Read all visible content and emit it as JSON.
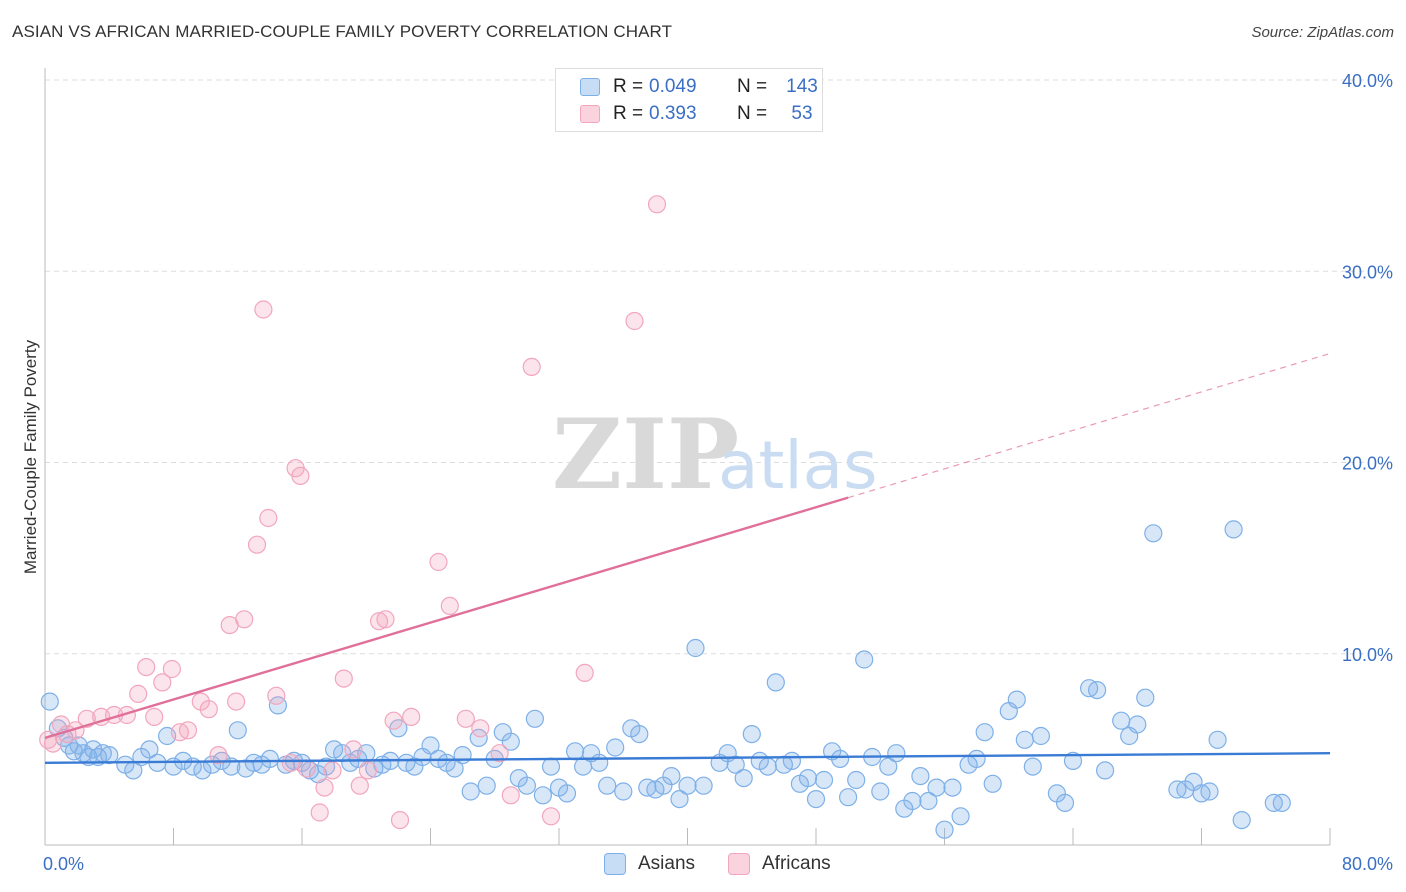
{
  "title": "ASIAN VS AFRICAN MARRIED-COUPLE FAMILY POVERTY CORRELATION CHART",
  "source": "Source: ZipAtlas.com",
  "watermark": {
    "zip": "ZIP",
    "atlas": "atlas"
  },
  "stats": [
    {
      "r_label": "R =",
      "r_value": "0.049",
      "n_label": "N =",
      "n_value": "143",
      "color": "#7eb0e8"
    },
    {
      "r_label": "R =",
      "r_value": "0.393",
      "n_label": "N =",
      "n_value": "53",
      "color": "#f2a6bd"
    }
  ],
  "legend": [
    {
      "label": "Asians",
      "color": "#7eb0e8"
    },
    {
      "label": "Africans",
      "color": "#f2a6bd"
    }
  ],
  "chart_data": {
    "type": "scatter",
    "title": "ASIAN VS AFRICAN MARRIED-COUPLE FAMILY POVERTY CORRELATION CHART",
    "xlabel": "",
    "ylabel": "Married-Couple Family Poverty",
    "xlim": [
      0,
      80
    ],
    "ylim": [
      0,
      41.5
    ],
    "x_tick_labels": [
      {
        "value": 0,
        "label": "0.0%"
      },
      {
        "value": 80,
        "label": "80.0%"
      }
    ],
    "y_tick_labels": [
      {
        "value": 10,
        "label": "10.0%"
      },
      {
        "value": 20,
        "label": "20.0%"
      },
      {
        "value": 30,
        "label": "30.0%"
      },
      {
        "value": 40,
        "label": "40.0%"
      }
    ],
    "x_minor_ticks": [
      8,
      16,
      24,
      32,
      40,
      48,
      56,
      64,
      72
    ],
    "gridlines": "horizontal-dashed",
    "series": [
      {
        "name": "Asians",
        "color": "#7eb0e8",
        "trend": {
          "x0": 0,
          "y0": 4.3,
          "x1": 80,
          "y1": 4.8,
          "solid_to": 80
        },
        "points": [
          [
            0.3,
            7.5
          ],
          [
            0.8,
            6.1
          ],
          [
            1.2,
            5.6
          ],
          [
            1.5,
            5.2
          ],
          [
            1.8,
            4.9
          ],
          [
            2.1,
            5.2
          ],
          [
            2.4,
            4.8
          ],
          [
            2.7,
            4.6
          ],
          [
            3.0,
            5.0
          ],
          [
            3.3,
            4.6
          ],
          [
            3.6,
            4.8
          ],
          [
            4.0,
            4.7
          ],
          [
            5.0,
            4.2
          ],
          [
            5.5,
            3.9
          ],
          [
            6.0,
            4.6
          ],
          [
            6.5,
            5.0
          ],
          [
            7.0,
            4.3
          ],
          [
            7.6,
            5.7
          ],
          [
            8.0,
            4.1
          ],
          [
            8.6,
            4.4
          ],
          [
            9.2,
            4.1
          ],
          [
            9.8,
            3.9
          ],
          [
            10.4,
            4.2
          ],
          [
            11.0,
            4.4
          ],
          [
            11.6,
            4.1
          ],
          [
            12.0,
            6.0
          ],
          [
            12.5,
            4.0
          ],
          [
            13.0,
            4.3
          ],
          [
            13.5,
            4.2
          ],
          [
            14.0,
            4.5
          ],
          [
            14.5,
            7.3
          ],
          [
            15.0,
            4.2
          ],
          [
            15.5,
            4.4
          ],
          [
            16.0,
            4.3
          ],
          [
            16.5,
            3.9
          ],
          [
            17.0,
            3.7
          ],
          [
            17.5,
            4.1
          ],
          [
            18.0,
            5.0
          ],
          [
            18.5,
            4.8
          ],
          [
            19.0,
            4.3
          ],
          [
            19.5,
            4.5
          ],
          [
            20.0,
            4.8
          ],
          [
            20.5,
            4.0
          ],
          [
            21.0,
            4.2
          ],
          [
            21.5,
            4.4
          ],
          [
            22.0,
            6.1
          ],
          [
            22.5,
            4.3
          ],
          [
            23.0,
            4.1
          ],
          [
            23.5,
            4.6
          ],
          [
            24.0,
            5.2
          ],
          [
            24.5,
            4.5
          ],
          [
            25.0,
            4.3
          ],
          [
            25.5,
            4.0
          ],
          [
            26.0,
            4.7
          ],
          [
            26.5,
            2.8
          ],
          [
            27.0,
            5.6
          ],
          [
            27.5,
            3.1
          ],
          [
            28.0,
            4.5
          ],
          [
            28.5,
            5.9
          ],
          [
            29.0,
            5.4
          ],
          [
            29.5,
            3.5
          ],
          [
            30.0,
            3.1
          ],
          [
            30.5,
            6.6
          ],
          [
            31.0,
            2.6
          ],
          [
            31.5,
            4.1
          ],
          [
            32.0,
            3.0
          ],
          [
            32.5,
            2.7
          ],
          [
            33.0,
            4.9
          ],
          [
            33.5,
            4.1
          ],
          [
            34.0,
            4.8
          ],
          [
            34.5,
            4.3
          ],
          [
            35.0,
            3.1
          ],
          [
            35.5,
            5.1
          ],
          [
            36.0,
            2.8
          ],
          [
            36.5,
            6.1
          ],
          [
            37.0,
            5.8
          ],
          [
            37.5,
            3.0
          ],
          [
            38.0,
            2.9
          ],
          [
            38.5,
            3.1
          ],
          [
            39.0,
            3.6
          ],
          [
            39.5,
            2.4
          ],
          [
            40.0,
            3.1
          ],
          [
            40.5,
            10.3
          ],
          [
            41.0,
            3.1
          ],
          [
            42.0,
            4.3
          ],
          [
            42.5,
            4.8
          ],
          [
            43.0,
            4.2
          ],
          [
            43.5,
            3.5
          ],
          [
            44.0,
            5.8
          ],
          [
            44.5,
            4.4
          ],
          [
            45.0,
            4.1
          ],
          [
            45.5,
            8.5
          ],
          [
            46.0,
            4.2
          ],
          [
            46.5,
            4.4
          ],
          [
            47.0,
            3.2
          ],
          [
            47.5,
            3.5
          ],
          [
            48.0,
            2.4
          ],
          [
            48.5,
            3.4
          ],
          [
            49.0,
            4.9
          ],
          [
            49.5,
            4.5
          ],
          [
            50.0,
            2.5
          ],
          [
            50.5,
            3.4
          ],
          [
            51.0,
            9.7
          ],
          [
            51.5,
            4.6
          ],
          [
            52.0,
            2.8
          ],
          [
            52.5,
            4.1
          ],
          [
            53.0,
            4.8
          ],
          [
            53.5,
            1.9
          ],
          [
            54.0,
            2.3
          ],
          [
            54.5,
            3.6
          ],
          [
            55.0,
            2.3
          ],
          [
            55.5,
            3.0
          ],
          [
            56.0,
            0.8
          ],
          [
            56.5,
            3.0
          ],
          [
            57.0,
            1.5
          ],
          [
            57.5,
            4.2
          ],
          [
            58.0,
            4.5
          ],
          [
            58.5,
            5.9
          ],
          [
            59.0,
            3.2
          ],
          [
            60.0,
            7.0
          ],
          [
            60.5,
            7.6
          ],
          [
            61.0,
            5.5
          ],
          [
            61.5,
            4.1
          ],
          [
            62.0,
            5.7
          ],
          [
            63.0,
            2.7
          ],
          [
            63.5,
            2.2
          ],
          [
            64.0,
            4.4
          ],
          [
            65.0,
            8.2
          ],
          [
            65.5,
            8.1
          ],
          [
            66.0,
            3.9
          ],
          [
            67.0,
            6.5
          ],
          [
            67.5,
            5.7
          ],
          [
            68.0,
            6.3
          ],
          [
            68.5,
            7.7
          ],
          [
            69.0,
            16.3
          ],
          [
            70.5,
            2.9
          ],
          [
            71.0,
            2.9
          ],
          [
            71.5,
            3.3
          ],
          [
            72.0,
            2.7
          ],
          [
            72.5,
            2.8
          ],
          [
            73.0,
            5.5
          ],
          [
            74.0,
            16.5
          ],
          [
            74.5,
            1.3
          ],
          [
            76.5,
            2.2
          ],
          [
            77.0,
            2.2
          ]
        ]
      },
      {
        "name": "Africans",
        "color": "#f2a6bd",
        "trend": {
          "x0": 0,
          "y0": 5.6,
          "x1": 80,
          "y1": 25.7,
          "solid_to": 50
        },
        "points": [
          [
            0.5,
            5.3
          ],
          [
            1.0,
            6.3
          ],
          [
            1.4,
            5.8
          ],
          [
            1.9,
            6.0
          ],
          [
            2.6,
            6.6
          ],
          [
            3.5,
            6.7
          ],
          [
            4.3,
            6.8
          ],
          [
            5.1,
            6.8
          ],
          [
            5.8,
            7.9
          ],
          [
            6.3,
            9.3
          ],
          [
            6.8,
            6.7
          ],
          [
            7.3,
            8.5
          ],
          [
            7.9,
            9.2
          ],
          [
            8.4,
            5.9
          ],
          [
            8.9,
            6.0
          ],
          [
            9.7,
            7.5
          ],
          [
            10.2,
            7.1
          ],
          [
            10.8,
            4.7
          ],
          [
            11.5,
            11.5
          ],
          [
            11.9,
            7.5
          ],
          [
            12.4,
            11.8
          ],
          [
            13.2,
            15.7
          ],
          [
            13.6,
            28.0
          ],
          [
            13.9,
            17.1
          ],
          [
            14.4,
            7.8
          ],
          [
            15.3,
            4.3
          ],
          [
            15.6,
            19.7
          ],
          [
            15.9,
            19.3
          ],
          [
            16.3,
            4.0
          ],
          [
            17.1,
            1.7
          ],
          [
            17.4,
            3.0
          ],
          [
            17.9,
            3.9
          ],
          [
            18.6,
            8.7
          ],
          [
            19.2,
            5.0
          ],
          [
            19.6,
            3.1
          ],
          [
            20.1,
            3.9
          ],
          [
            20.8,
            11.7
          ],
          [
            21.2,
            11.8
          ],
          [
            21.7,
            6.5
          ],
          [
            22.1,
            1.3
          ],
          [
            22.8,
            6.7
          ],
          [
            24.5,
            14.8
          ],
          [
            25.2,
            12.5
          ],
          [
            26.2,
            6.6
          ],
          [
            27.1,
            6.1
          ],
          [
            28.3,
            4.8
          ],
          [
            29.0,
            2.6
          ],
          [
            30.3,
            25.0
          ],
          [
            31.5,
            1.5
          ],
          [
            33.6,
            9.0
          ],
          [
            36.7,
            27.4
          ],
          [
            38.1,
            33.5
          ],
          [
            0.2,
            5.5
          ]
        ]
      }
    ]
  }
}
